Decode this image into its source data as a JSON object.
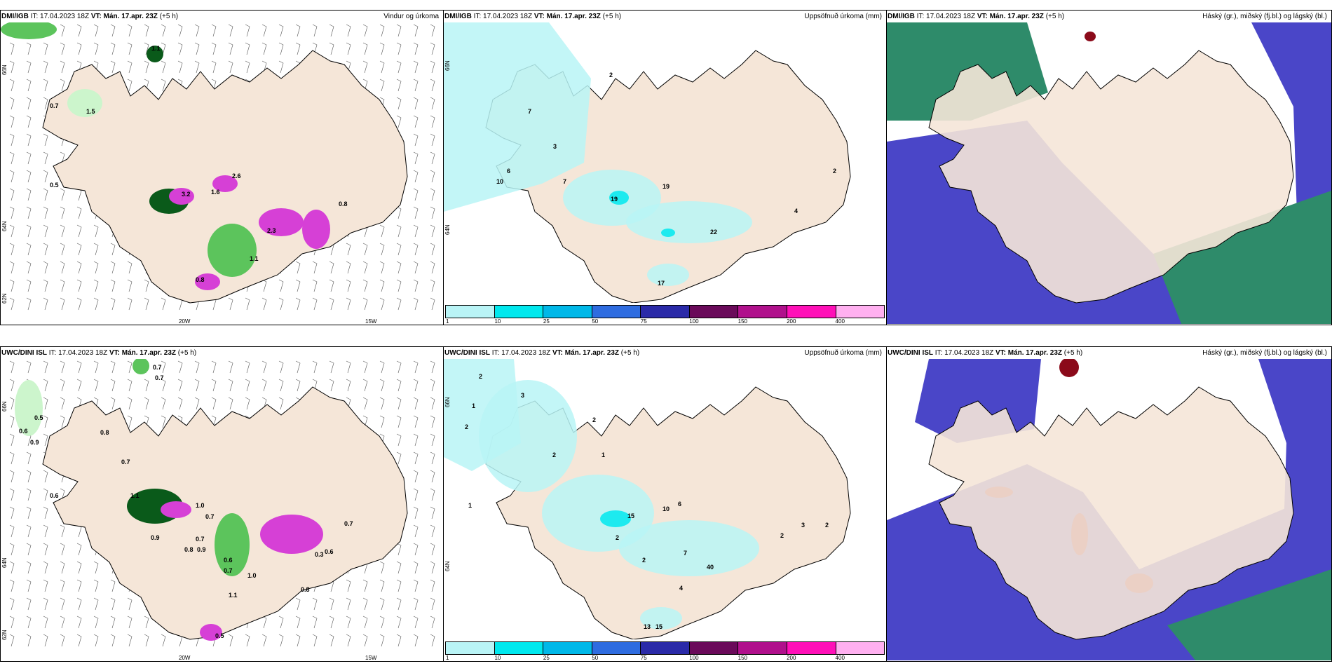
{
  "colors": {
    "land": "#f5e6d8",
    "sea": "#ffffff",
    "precip_light": "#ccf5cc",
    "precip_mid": "#5cc45c",
    "precip_dark": "#0a5a1a",
    "precip_snow": "#d640d6",
    "accum_cyan": "#b9f4f6",
    "cloud_high": "#8b0a1a",
    "cloud_mid": "#2e8b6a",
    "cloud_low": "#4a46c8"
  },
  "scale": {
    "labels": [
      "1",
      "10",
      "25",
      "50",
      "75",
      "100",
      "150",
      "200",
      "400"
    ],
    "colors": [
      "#b9f4f6",
      "#00e8ee",
      "#00b8e8",
      "#2e6ce0",
      "#2a2aa8",
      "#6a0a5a",
      "#b0108c",
      "#ff10b8",
      "#ffb0f0"
    ]
  },
  "rows": [
    {
      "source": "DMI/IGB",
      "it": "IT: 17.04.2023 18Z",
      "vt": "VT: Mán. 17.apr. 23Z",
      "lead": "(+5 h)",
      "panels": [
        {
          "title": "Vindur og úrkoma",
          "values": [
            "0.7",
            "1.5",
            "1.1",
            "0.5",
            "1.6",
            "3.2",
            "0.8",
            "2.3",
            "1.1",
            "0.8",
            "2.6"
          ],
          "lon": [
            "20W",
            "15W"
          ],
          "lat": [
            "66N",
            "64N",
            "62N"
          ]
        },
        {
          "title": "Uppsöfnuð úrkoma (mm)",
          "values": [
            "2",
            "7",
            "3",
            "6",
            "10",
            "7",
            "19",
            "19",
            "22",
            "17",
            "4",
            "2"
          ],
          "lat": [
            "66N",
            "64N"
          ]
        },
        {
          "title": "Háský (gr.), miðský (fj.bl.) og lágský (bl.)"
        }
      ]
    },
    {
      "source": "UWC/DINI ISL",
      "it": "IT: 17.04.2023 18Z",
      "vt": "VT: Mán. 17.apr. 23Z",
      "lead": "(+5 h)",
      "panels": [
        {
          "title": "",
          "values": [
            "0.7",
            "0.7",
            "0.5",
            "0.6",
            "0.9",
            "0.8",
            "0.7",
            "0.6",
            "1.1",
            "1.0",
            "0.7",
            "0.9",
            "0.7",
            "0.8",
            "0.9",
            "0.6",
            "0.7",
            "1.0",
            "1.1",
            "0.3",
            "0.6",
            "0.8",
            "0.5",
            "0.7"
          ],
          "lon": [
            "20W",
            "15W"
          ],
          "lat": [
            "66N",
            "64N",
            "62N"
          ]
        },
        {
          "title": "Uppsöfnuð úrkoma (mm)",
          "values": [
            "2",
            "3",
            "1",
            "2",
            "2",
            "2",
            "1",
            "15",
            "10",
            "6",
            "2",
            "4",
            "7",
            "40",
            "2",
            "3",
            "2",
            "1",
            "13",
            "15",
            "2"
          ],
          "lat": [
            "66N",
            "64N"
          ]
        },
        {
          "title": "Háský (gr.), miðský (fj.bl.) og lágský (bl.)"
        }
      ]
    }
  ]
}
